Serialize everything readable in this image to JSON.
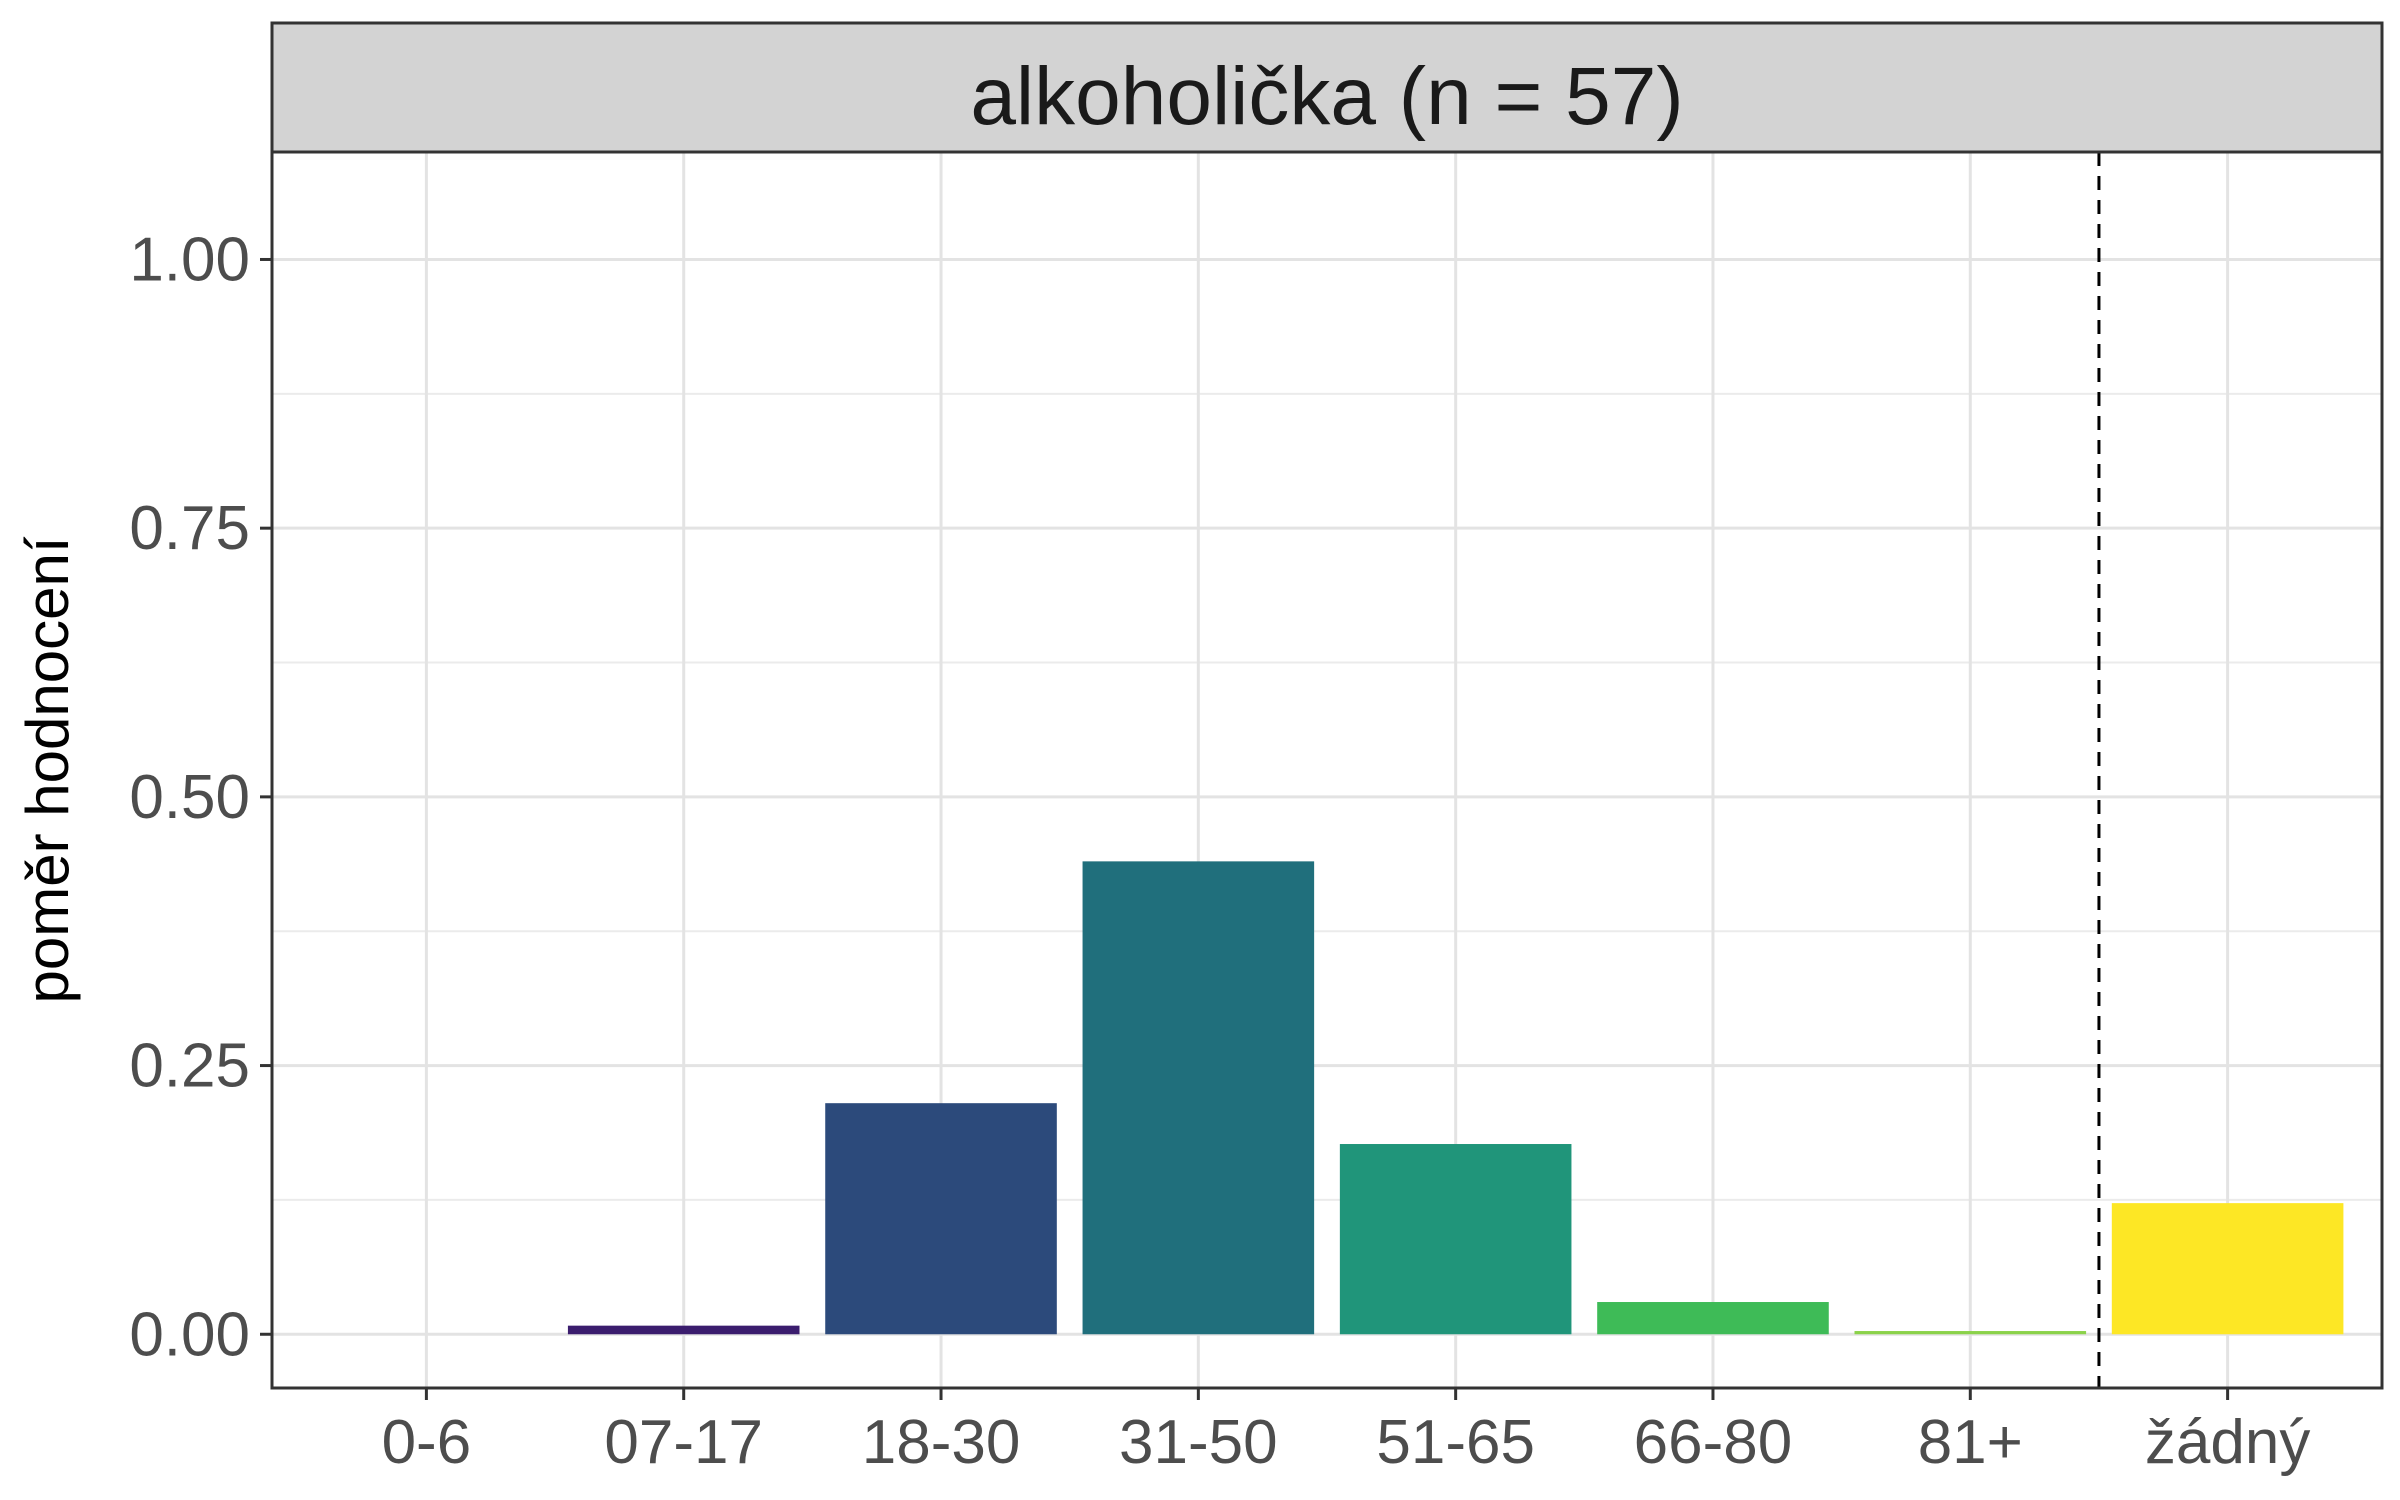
{
  "chart_data": {
    "type": "bar",
    "facet_title": "alkoholička (n = 57)",
    "xlabel": "",
    "ylabel": "poměr hodnocení",
    "categories": [
      "0-6",
      "07-17",
      "18-30",
      "31-50",
      "51-65",
      "66-80",
      "81+",
      "žádný"
    ],
    "values": [
      0.0,
      0.008,
      0.215,
      0.44,
      0.177,
      0.03,
      0.003,
      0.122
    ],
    "colors": [
      "#440154",
      "#3b1d6e",
      "#2c4a7b",
      "#206f7c",
      "#20957a",
      "#3ebb57",
      "#8bd24a",
      "#fde725"
    ],
    "ylim": [
      -0.05,
      1.1
    ],
    "yticks": [
      "0.00",
      "0.25",
      "0.50",
      "0.75",
      "1.00"
    ],
    "reference_line": {
      "between": [
        "81+",
        "žádný"
      ],
      "style": "dashed"
    },
    "grid": true,
    "legend": "none"
  }
}
